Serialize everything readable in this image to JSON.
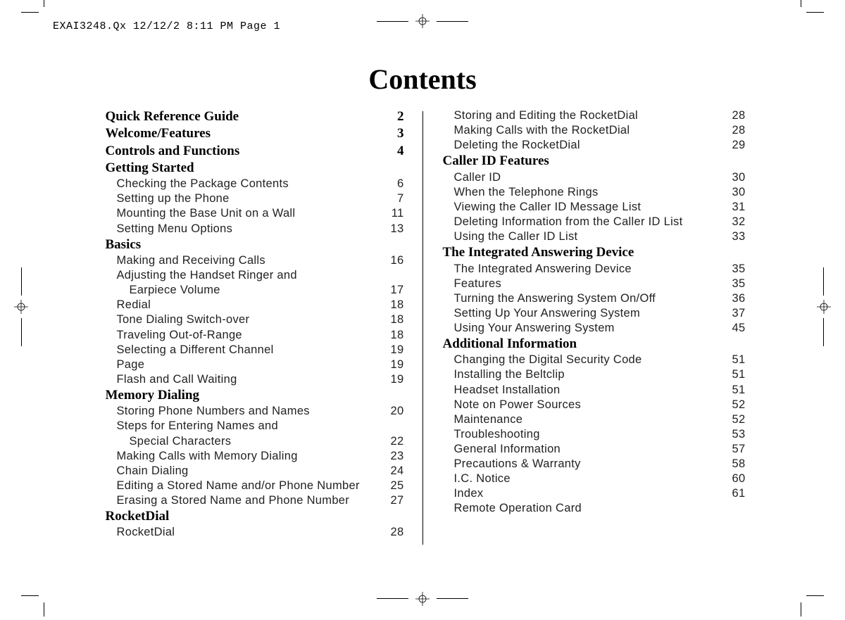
{
  "slug": "EXAI3248.Qx  12/12/2 8:11 PM  Page 1",
  "title": "Contents",
  "left": [
    {
      "type": "section",
      "label": "Quick Reference Guide",
      "page": "2"
    },
    {
      "type": "section",
      "label": "Welcome/Features",
      "page": "3"
    },
    {
      "type": "section",
      "label": "Controls and Functions",
      "page": "4"
    },
    {
      "type": "section",
      "label": "Getting Started",
      "page": ""
    },
    {
      "type": "entry",
      "label": "Checking the Package Contents",
      "page": "6"
    },
    {
      "type": "entry",
      "label": "Setting up the Phone",
      "page": "7"
    },
    {
      "type": "entry",
      "label": "Mounting the Base Unit on a Wall",
      "page": "11"
    },
    {
      "type": "entry",
      "label": "Setting Menu Options",
      "page": "13"
    },
    {
      "type": "section",
      "label": "Basics",
      "page": ""
    },
    {
      "type": "entry",
      "label": "Making and Receiving Calls",
      "page": "16"
    },
    {
      "type": "entry",
      "label": "Adjusting the Handset Ringer and",
      "page": ""
    },
    {
      "type": "entry",
      "indent": 2,
      "label": "Earpiece Volume",
      "page": "17"
    },
    {
      "type": "entry",
      "label": "Redial",
      "page": "18"
    },
    {
      "type": "entry",
      "label": "Tone Dialing Switch-over",
      "page": "18"
    },
    {
      "type": "entry",
      "label": "Traveling Out-of-Range",
      "page": "18"
    },
    {
      "type": "entry",
      "label": "Selecting a Different Channel",
      "page": "19"
    },
    {
      "type": "entry",
      "label": "Page",
      "page": "19"
    },
    {
      "type": "entry",
      "label": "Flash and Call Waiting",
      "page": "19"
    },
    {
      "type": "section",
      "label": "Memory Dialing",
      "page": ""
    },
    {
      "type": "entry",
      "label": "Storing Phone Numbers and Names",
      "page": "20"
    },
    {
      "type": "entry",
      "label": "Steps for Entering Names and",
      "page": ""
    },
    {
      "type": "entry",
      "indent": 2,
      "label": "Special Characters",
      "page": "22"
    },
    {
      "type": "entry",
      "label": "Making Calls with Memory Dialing",
      "page": "23"
    },
    {
      "type": "entry",
      "label": "Chain Dialing",
      "page": "24"
    },
    {
      "type": "entry",
      "label": "Editing a Stored Name and/or Phone Number",
      "page": "25"
    },
    {
      "type": "entry",
      "label": "Erasing a Stored Name and Phone Number",
      "page": "27"
    },
    {
      "type": "section",
      "label": "RocketDial",
      "page": ""
    },
    {
      "type": "entry",
      "label": "RocketDial",
      "page": "28"
    }
  ],
  "right": [
    {
      "type": "entry",
      "label": "Storing and Editing the RocketDial",
      "page": "28"
    },
    {
      "type": "entry",
      "label": "Making Calls with the RocketDial",
      "page": "28"
    },
    {
      "type": "entry",
      "label": "Deleting the RocketDial",
      "page": "29"
    },
    {
      "type": "section",
      "label": "Caller ID Features",
      "page": ""
    },
    {
      "type": "entry",
      "label": "Caller ID",
      "page": "30"
    },
    {
      "type": "entry",
      "label": "When the Telephone Rings",
      "page": "30"
    },
    {
      "type": "entry",
      "label": "Viewing the Caller ID Message List",
      "page": "31"
    },
    {
      "type": "entry",
      "label": "Deleting Information from the Caller ID List",
      "page": "32"
    },
    {
      "type": "entry",
      "label": "Using the Caller ID List",
      "page": "33"
    },
    {
      "type": "section",
      "label": "The Integrated Answering Device",
      "page": ""
    },
    {
      "type": "entry",
      "label": "The Integrated Answering Device",
      "page": "35"
    },
    {
      "type": "entry",
      "label": "Features",
      "page": "35"
    },
    {
      "type": "entry",
      "label": "Turning the Answering System On/Off",
      "page": "36"
    },
    {
      "type": "entry",
      "label": "Setting Up Your Answering System",
      "page": "37"
    },
    {
      "type": "entry",
      "label": "Using Your Answering System",
      "page": "45"
    },
    {
      "type": "section",
      "label": "Additional Information",
      "page": ""
    },
    {
      "type": "entry",
      "label": "Changing the Digital Security Code",
      "page": "51"
    },
    {
      "type": "entry",
      "label": "Installing the Beltclip",
      "page": "51"
    },
    {
      "type": "entry",
      "label": "Headset Installation",
      "page": "51"
    },
    {
      "type": "entry",
      "label": "Note on Power Sources",
      "page": "52"
    },
    {
      "type": "entry",
      "label": "Maintenance",
      "page": "52"
    },
    {
      "type": "entry",
      "label": "Troubleshooting",
      "page": "53"
    },
    {
      "type": "entry",
      "label": "General Information",
      "page": "57"
    },
    {
      "type": "entry",
      "label": "Precautions & Warranty",
      "page": "58"
    },
    {
      "type": "entry",
      "label": "I.C. Notice",
      "page": "60"
    },
    {
      "type": "entry",
      "label": "Index",
      "page": "61"
    },
    {
      "type": "entry",
      "label": "Remote Operation Card",
      "page": ""
    }
  ],
  "colors": {
    "text": "#000000",
    "background": "#ffffff"
  }
}
